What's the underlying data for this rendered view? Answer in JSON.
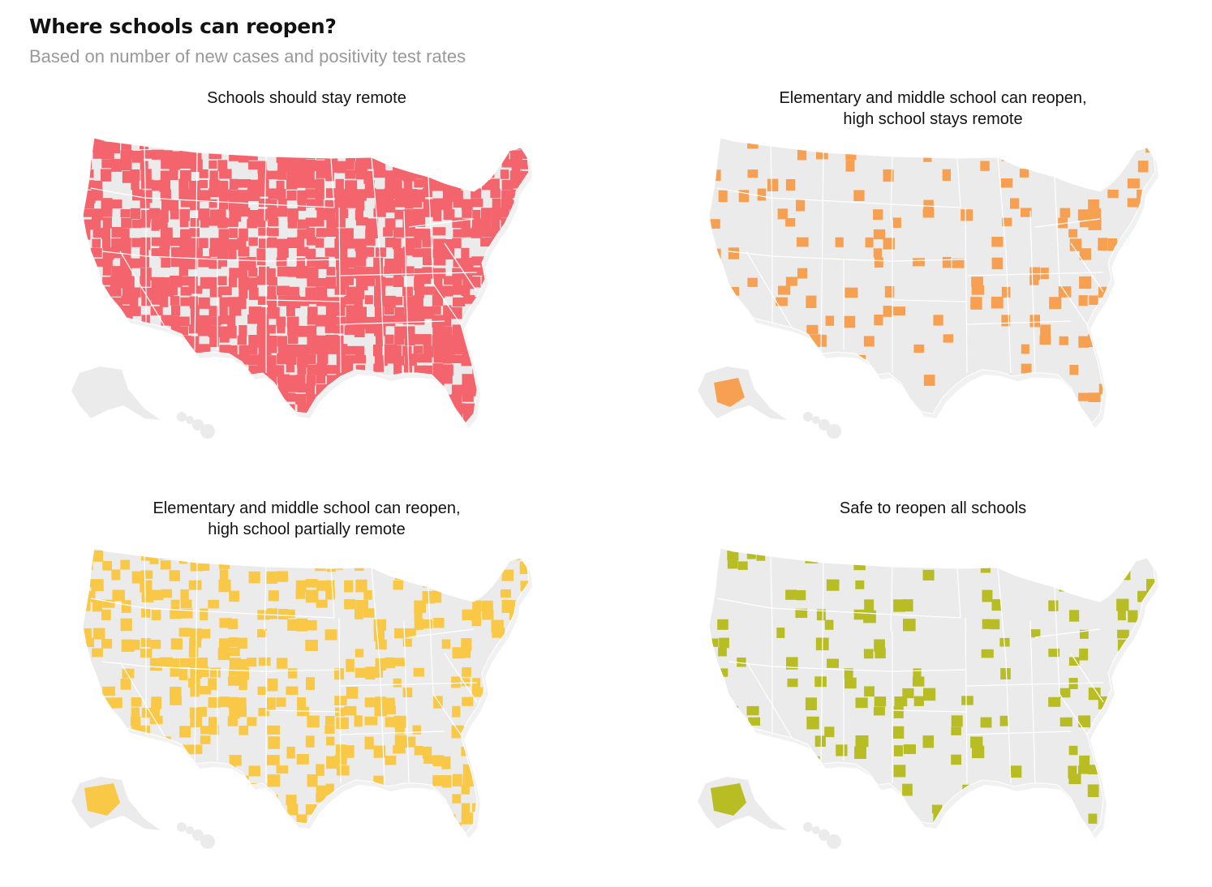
{
  "title": "Where schools can reopen?",
  "subtitle": "Based on number of new cases and positivity test rates",
  "colors": {
    "land": "#ebebeb",
    "border": "#ffffff",
    "shadow": "#d8d8d8"
  },
  "panels": [
    {
      "caption_lines": [
        "Schools should stay remote"
      ],
      "color": "#f4646c",
      "coverage": "most"
    },
    {
      "caption_lines": [
        "Elementary and middle school can reopen,",
        "high school stays remote"
      ],
      "color": "#f8a052",
      "coverage": "few"
    },
    {
      "caption_lines": [
        "Elementary and middle school can reopen,",
        "high school partially remote"
      ],
      "color": "#f9c846",
      "coverage": "some"
    },
    {
      "caption_lines": [
        "Safe to reopen all schools"
      ],
      "color": "#b7bd22",
      "coverage": "few"
    }
  ]
}
